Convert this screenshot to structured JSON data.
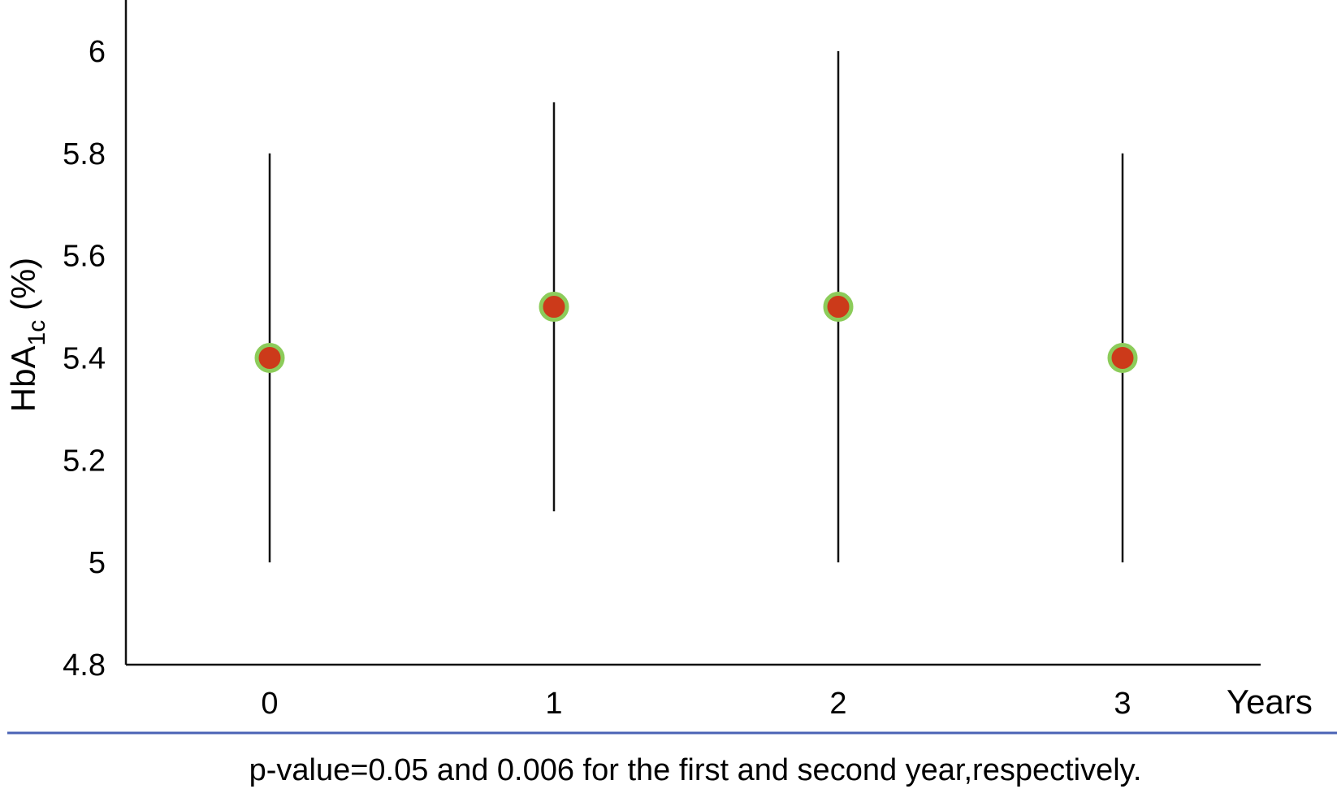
{
  "chart_data": {
    "type": "scatter",
    "title": "",
    "xlabel": "Years",
    "ylabel": {
      "main": "HbA",
      "subscript": "1c",
      "suffix": " (%)"
    },
    "categories": [
      "0",
      "1",
      "2",
      "3"
    ],
    "series": [
      {
        "values": [
          5.4,
          5.5,
          5.5,
          5.4
        ],
        "error_low": [
          5.0,
          5.1,
          5.0,
          5.0
        ],
        "error_high": [
          5.8,
          5.9,
          6.0,
          5.8
        ]
      }
    ],
    "ylim": [
      4.8,
      6.1
    ],
    "yticks": [
      "4.8",
      "5",
      "5.2",
      "5.4",
      "5.6",
      "5.8",
      "6"
    ],
    "grid": false,
    "legend": "none",
    "marker_fill": "#cc3a1a",
    "marker_outline": "#8ccc5a",
    "error_bar_color": "#111111"
  },
  "footnote": "p-value=0.05  and 0.006  for the first and second year,respectively.",
  "footnote_rule_color": "#4a63b5"
}
